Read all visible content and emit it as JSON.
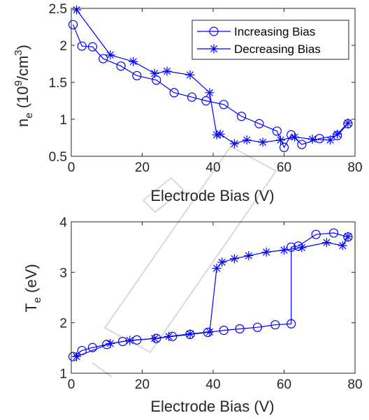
{
  "colors": {
    "series": "#0000ff",
    "axis": "#262626",
    "watermark": "#d9d9d9"
  },
  "watermark": {
    "text": "PREPRINT",
    "visible_fragments": "CRIPT"
  },
  "chart_data": [
    {
      "type": "line",
      "title": "",
      "xlabel": "Electrode Bias (V)",
      "ylabel_parts": {
        "base": "n",
        "sub": "e",
        "unit_open": " (10",
        "sup1": "9",
        "unit_mid": "/cm",
        "sup2": "3",
        "unit_close": ")"
      },
      "xlim": [
        0,
        80
      ],
      "ylim": [
        0.5,
        2.5
      ],
      "xticks": [
        "0",
        "20",
        "40",
        "60",
        "80"
      ],
      "yticks": [
        "0.5",
        "1",
        "1.5",
        "2",
        "2.5"
      ],
      "legend_position": "top-right",
      "grid": false,
      "series": [
        {
          "name": "Increasing Bias",
          "marker": "circle",
          "x": [
            0.5,
            3,
            6,
            9,
            14,
            18.5,
            24,
            29,
            34,
            38,
            43,
            48,
            53,
            58,
            60,
            62,
            65,
            70,
            75,
            78
          ],
          "y": [
            2.28,
            1.99,
            1.98,
            1.82,
            1.72,
            1.59,
            1.53,
            1.36,
            1.3,
            1.25,
            1.2,
            1.04,
            0.94,
            0.84,
            0.62,
            0.79,
            0.66,
            0.74,
            0.78,
            0.94
          ]
        },
        {
          "name": "Decreasing Bias",
          "marker": "star",
          "x": [
            1.5,
            11,
            17.5,
            23.5,
            27,
            33.5,
            39,
            41,
            42,
            46,
            49.5,
            54,
            59,
            63,
            68,
            73,
            75,
            78
          ],
          "y": [
            2.48,
            1.87,
            1.78,
            1.62,
            1.65,
            1.6,
            1.36,
            0.79,
            0.8,
            0.67,
            0.72,
            0.69,
            0.72,
            0.76,
            0.73,
            0.72,
            0.8,
            0.95
          ]
        }
      ]
    },
    {
      "type": "line",
      "title": "",
      "xlabel": "Electrode Bias (V)",
      "ylabel_parts": {
        "base": "T",
        "sub": "e",
        "unit": " (eV)"
      },
      "xlim": [
        0,
        80
      ],
      "ylim": [
        1,
        4
      ],
      "xticks": [
        "0",
        "20",
        "40",
        "60",
        "80"
      ],
      "yticks": [
        "1",
        "2",
        "3",
        "4"
      ],
      "grid": false,
      "series": [
        {
          "name": "Increasing Bias",
          "marker": "circle",
          "x": [
            0.5,
            3,
            6,
            10,
            14.5,
            18.5,
            24,
            28.5,
            33.5,
            38.5,
            43,
            47.5,
            52.5,
            57.5,
            62,
            62,
            64,
            69,
            74,
            78
          ],
          "y": [
            1.33,
            1.45,
            1.51,
            1.57,
            1.63,
            1.66,
            1.69,
            1.73,
            1.77,
            1.81,
            1.85,
            1.88,
            1.91,
            1.96,
            1.98,
            3.5,
            3.52,
            3.75,
            3.78,
            3.7
          ]
        },
        {
          "name": "Decreasing Bias",
          "marker": "star",
          "x": [
            1.5,
            11,
            16.5,
            23.5,
            27.5,
            33.5,
            39,
            41,
            42.5,
            46,
            50,
            55,
            60,
            65,
            72,
            76.5,
            78
          ],
          "y": [
            1.33,
            1.59,
            1.65,
            1.69,
            1.73,
            1.78,
            1.82,
            3.08,
            3.2,
            3.27,
            3.33,
            3.4,
            3.44,
            3.49,
            3.59,
            3.53,
            3.71
          ]
        }
      ]
    }
  ]
}
